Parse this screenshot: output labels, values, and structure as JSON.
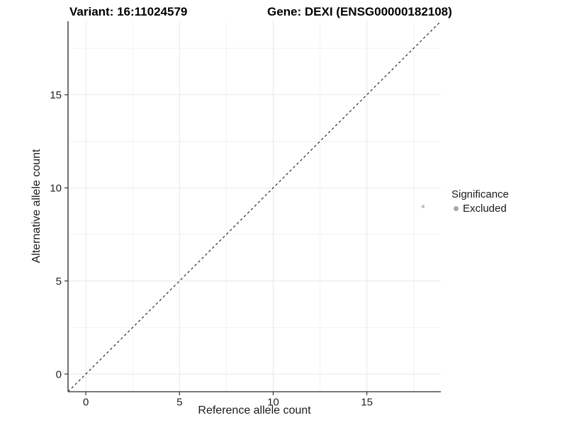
{
  "header": {
    "variant_title": "Variant: 16:11024579",
    "gene_title": "Gene: DEXI (ENSG00000182108)"
  },
  "legend": {
    "title": "Significance",
    "items": [
      {
        "label": "Excluded",
        "color": "#a8a8a8"
      }
    ]
  },
  "colors": {
    "axis": "#4d4d4d",
    "tick": "#333333",
    "grid_major": "#e7e7e7",
    "grid_minor": "#f2f2f2",
    "background": "#ffffff"
  },
  "chart_data": {
    "type": "scatter",
    "title": "Variant: 16:11024579   Gene: DEXI (ENSG00000182108)",
    "xlabel": "Reference allele count",
    "ylabel": "Alternative allele count",
    "xlim": [
      -0.95,
      18.95
    ],
    "ylim": [
      -0.95,
      18.95
    ],
    "x_ticks": [
      0,
      5,
      10,
      15
    ],
    "y_ticks": [
      0,
      5,
      10,
      15
    ],
    "minor_ticks": [
      2.5,
      7.5,
      12.5,
      17.5
    ],
    "grid": "major+minor",
    "legend_position": "right",
    "series": [
      {
        "name": "Excluded",
        "color": "#bfbfbf",
        "point_radius": 2.3,
        "points": [
          [
            18,
            9
          ]
        ]
      }
    ],
    "reference_line": {
      "type": "identity y=x",
      "style": "dashed",
      "color": "#1a1a1a"
    }
  }
}
